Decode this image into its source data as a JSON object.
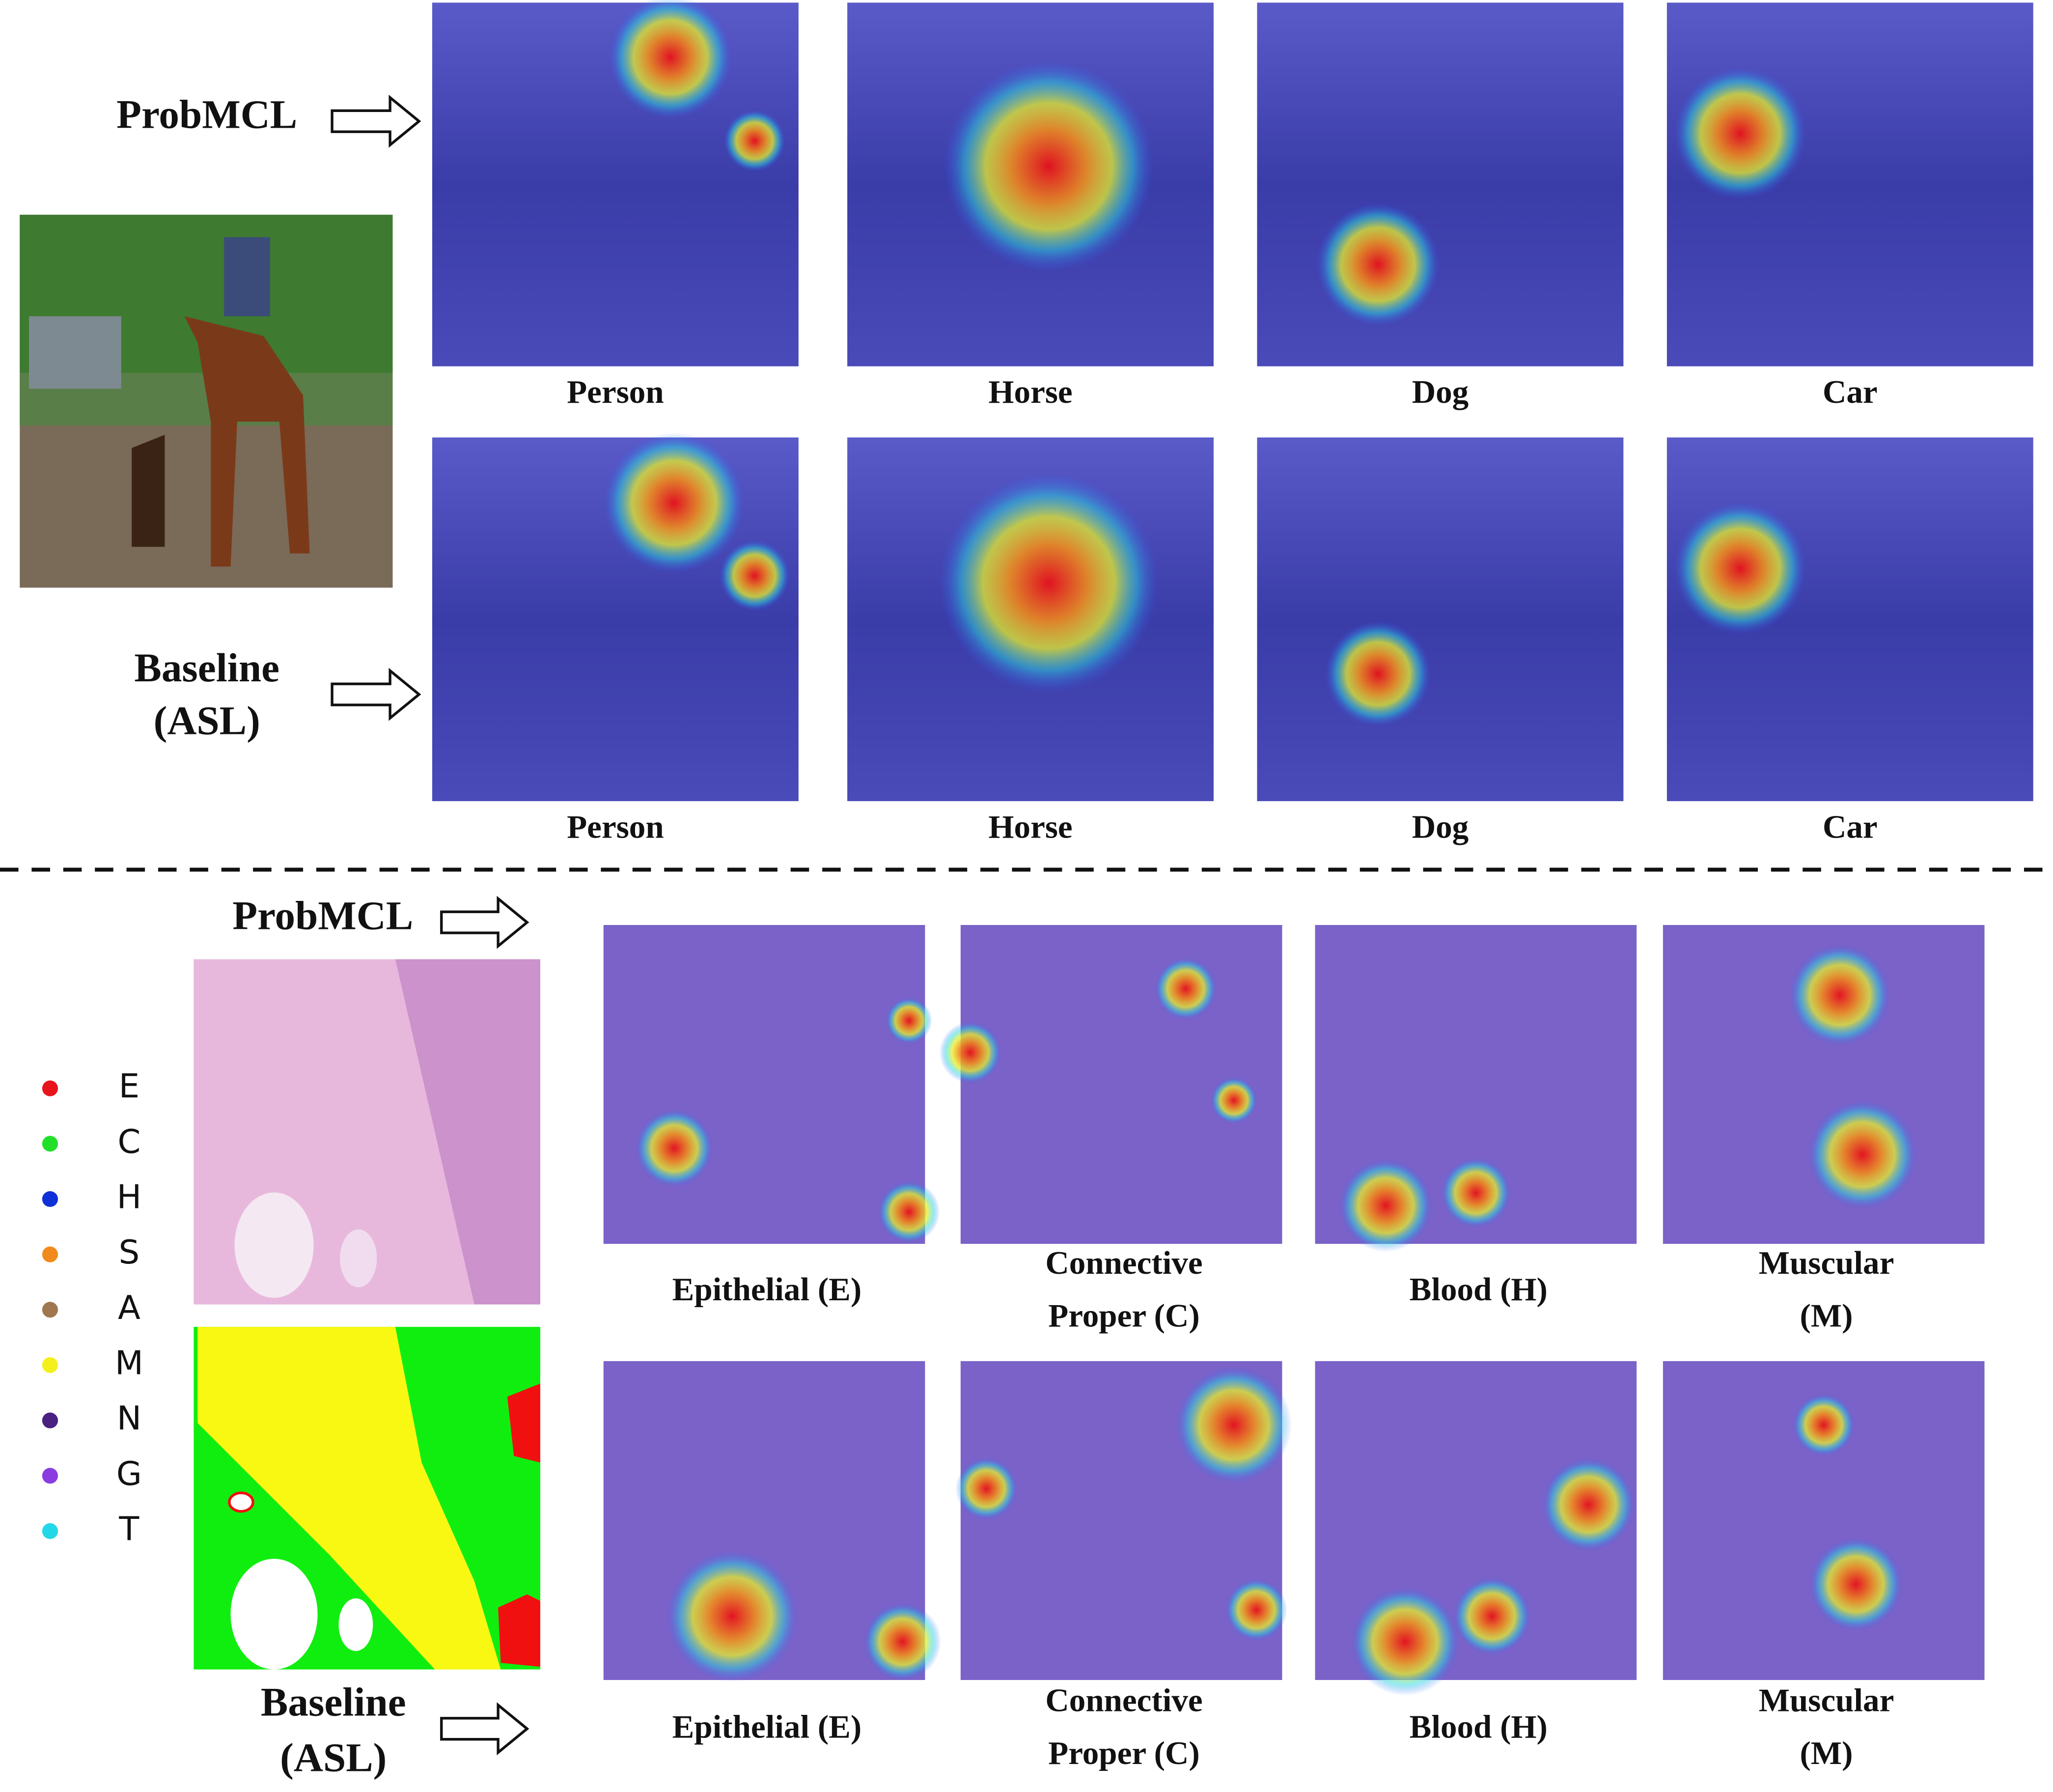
{
  "top": {
    "rows": [
      {
        "method": [
          "ProbMCL"
        ],
        "labels": [
          "Person",
          "Horse",
          "Dog",
          "Car"
        ]
      },
      {
        "method": [
          "Baseline",
          "(ASL)"
        ],
        "labels": [
          "Person",
          "Horse",
          "Dog",
          "Car"
        ]
      }
    ]
  },
  "bottom": {
    "rows": [
      {
        "method": [
          "ProbMCL"
        ],
        "labels": [
          [
            "Epithelial (E)"
          ],
          [
            "Connective",
            "Proper (C)"
          ],
          [
            "Blood (H)"
          ],
          [
            "Muscular",
            "(M)"
          ]
        ]
      },
      {
        "method": [
          "Baseline",
          "(ASL)"
        ],
        "labels": [
          [
            "Epithelial (E)"
          ],
          [
            "Connective",
            "Proper (C)"
          ],
          [
            "Blood (H)"
          ],
          [
            "Muscular",
            "(M)"
          ]
        ]
      }
    ],
    "legend": [
      {
        "label": "E",
        "color": "#e8141c"
      },
      {
        "label": "C",
        "color": "#22e02a"
      },
      {
        "label": "H",
        "color": "#1030d8"
      },
      {
        "label": "S",
        "color": "#f08a1c"
      },
      {
        "label": "A",
        "color": "#a07850"
      },
      {
        "label": "M",
        "color": "#f4f01c"
      },
      {
        "label": "N",
        "color": "#4a2080"
      },
      {
        "label": "G",
        "color": "#8a3ce0"
      },
      {
        "label": "T",
        "color": "#22d8e8"
      }
    ]
  }
}
